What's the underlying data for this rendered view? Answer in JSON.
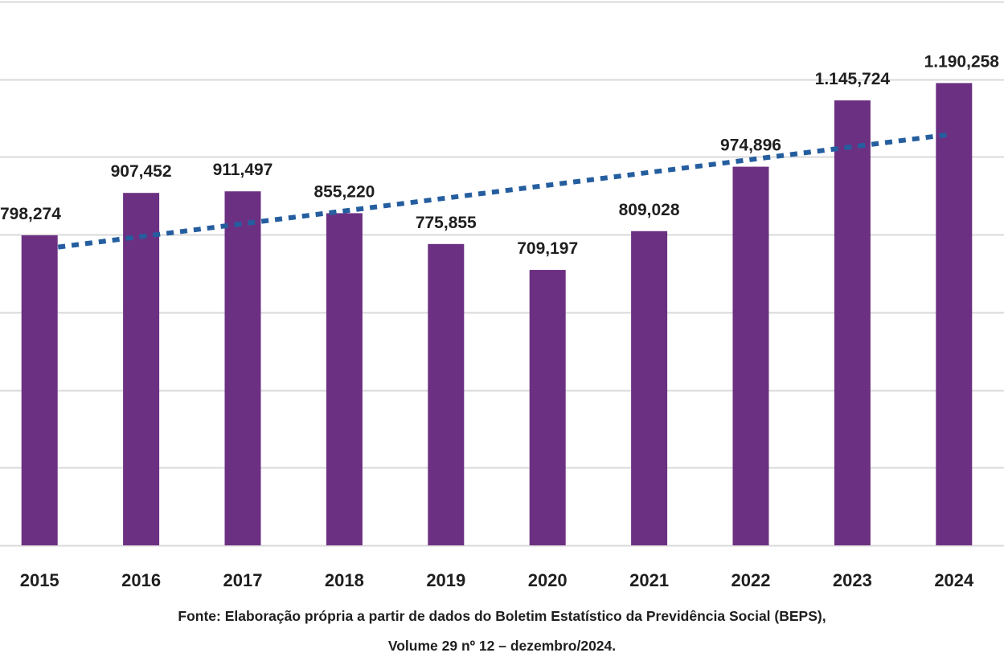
{
  "chart_data": {
    "type": "bar",
    "title": "",
    "xlabel": "",
    "ylabel": "",
    "categories": [
      "2015",
      "2016",
      "2017",
      "2018",
      "2019",
      "2020",
      "2021",
      "2022",
      "2023",
      "2024"
    ],
    "values": [
      798274,
      907452,
      911497,
      855220,
      775855,
      709197,
      809028,
      974896,
      1145724,
      1190258
    ],
    "data_labels": [
      "798,274",
      "907,452",
      "911,497",
      "855,220",
      "775,855",
      "709,197",
      "809,028",
      "974,896",
      "1.145,724",
      "1.190,258"
    ],
    "ylim": [
      0,
      1400000
    ],
    "grid_step": 200000,
    "grid": true,
    "y_tick_labels_visible": false,
    "trendline": {
      "type": "linear",
      "style": "dotted",
      "start_value": 768000,
      "end_value": 1058000
    },
    "colors": {
      "bar": "#6c3082",
      "trendline": "#255e9f",
      "grid": "#d9d9d9",
      "text": "#1f1f1f"
    }
  },
  "source": {
    "line1": "Fonte: Elaboração própria a partir de dados do Boletim Estatístico da Previdência Social (BEPS),",
    "line2": "Volume 29 nº 12 – dezembro/2024."
  }
}
